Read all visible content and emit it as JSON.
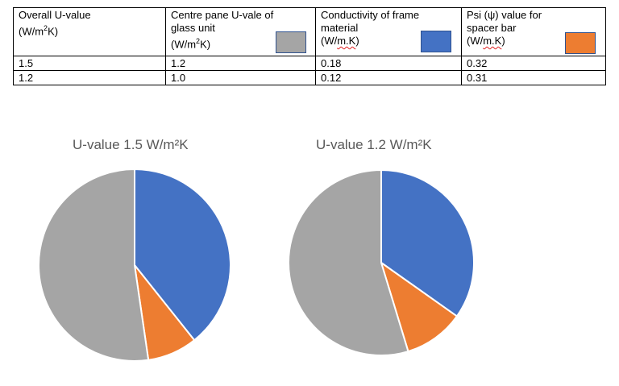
{
  "table": {
    "headers": [
      {
        "line1": "Overall U-value",
        "line2": "(W/m",
        "sup": "2",
        "line2b": "K)",
        "line3": "",
        "swatch": null
      },
      {
        "line1": "Centre pane U-vale of",
        "line2": "glass unit",
        "line3a": "(W/m",
        "sup": "2",
        "line3b": "K)",
        "swatch": "#a5a5a5"
      },
      {
        "line1": "Conductivity of frame",
        "line2": "material",
        "line3a": "(W/",
        "line3sq": "m.K",
        "line3b": ")",
        "swatch": "#4472c4"
      },
      {
        "line1": "Psi (ψ) value for",
        "line2": "spacer bar",
        "line3a": "(W/",
        "line3sq": "m.K",
        "line3b": ")",
        "swatch": "#ed7d31"
      }
    ],
    "rows": [
      [
        "1.5",
        "1.2",
        "0.18",
        "0.32"
      ],
      [
        "1.2",
        "1.0",
        "0.12",
        "0.31"
      ]
    ]
  },
  "colors": {
    "glass": "#a5a5a5",
    "frame": "#4472c4",
    "spacer": "#ed7d31",
    "title": "#595959"
  },
  "chart_data": [
    {
      "type": "pie",
      "title": "U-value 1.5 W/m²K",
      "categories": [
        "Conductivity of frame material",
        "Psi value for spacer bar",
        "Centre pane U-value of glass unit"
      ],
      "values": [
        39.3,
        8.4,
        52.3
      ],
      "colors": [
        "#4472c4",
        "#ed7d31",
        "#a5a5a5"
      ],
      "start_angle": "12 o'clock, clockwise",
      "legend": "none (swatches in table header)"
    },
    {
      "type": "pie",
      "title": "U-value 1.2 W/m²K",
      "categories": [
        "Conductivity of frame material",
        "Psi value for spacer bar",
        "Centre pane U-value of glass unit"
      ],
      "values": [
        34.8,
        10.5,
        54.7
      ],
      "colors": [
        "#4472c4",
        "#ed7d31",
        "#a5a5a5"
      ],
      "start_angle": "12 o'clock, clockwise",
      "legend": "none (swatches in table header)"
    }
  ]
}
